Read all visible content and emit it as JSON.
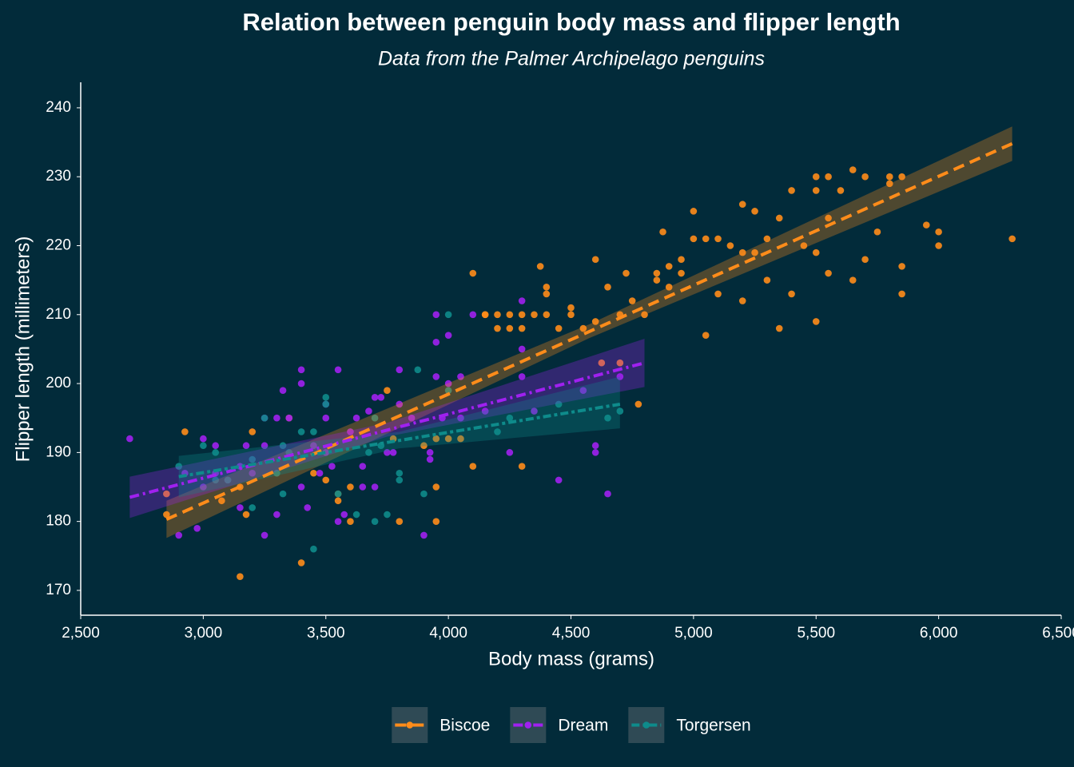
{
  "chart_data": {
    "type": "scatter",
    "title": "Relation between penguin body mass and flipper length",
    "subtitle": "Data from the Palmer Archipelago penguins",
    "x_label": "Body mass (grams)",
    "y_label": "Flipper length (millimeters)",
    "xlim": [
      2500,
      6500
    ],
    "ylim": [
      166.4,
      243.7
    ],
    "xticks": [
      {
        "value": 2500,
        "label": "2,500"
      },
      {
        "value": 3000,
        "label": "3,000"
      },
      {
        "value": 3500,
        "label": "3,500"
      },
      {
        "value": 4000,
        "label": "4,000"
      },
      {
        "value": 4500,
        "label": "4,500"
      },
      {
        "value": 5000,
        "label": "5,000"
      },
      {
        "value": 5500,
        "label": "5,500"
      },
      {
        "value": 6000,
        "label": "6,000"
      },
      {
        "value": 6500,
        "label": "6,500"
      }
    ],
    "yticks": [
      170,
      180,
      190,
      200,
      210,
      220,
      230,
      240
    ],
    "grid": false,
    "legend": "bottom",
    "series": [
      {
        "name": "Biscoe",
        "color": "#ff8c1a",
        "dash": "14 8",
        "x": [
          2850,
          2850,
          2925,
          3075,
          3150,
          3150,
          3175,
          3200,
          3350,
          3400,
          3450,
          3500,
          3550,
          3550,
          3600,
          3600,
          3750,
          3775,
          3800,
          3900,
          3950,
          3950,
          3950,
          4000,
          4050,
          4100,
          4100,
          4150,
          4200,
          4200,
          4250,
          4300,
          4300,
          4375,
          4400,
          4400,
          4450,
          4500,
          4550,
          4600,
          4625,
          4650,
          4700,
          4725,
          4750,
          4775,
          4800,
          4850,
          4875,
          4900,
          4950,
          5000,
          5000,
          5050,
          5100,
          5100,
          5200,
          5200,
          5200,
          5250,
          5300,
          5300,
          5350,
          5350,
          5400,
          5400,
          5450,
          5500,
          5500,
          5500,
          5500,
          5550,
          5550,
          5550,
          5600,
          5650,
          5650,
          5700,
          5700,
          5750,
          5800,
          5800,
          5850,
          5850,
          5850,
          5950,
          6000,
          6000,
          6300,
          4700,
          4600,
          4500,
          4400,
          4350,
          4300,
          4250,
          4150,
          5250,
          5150,
          5050,
          4950,
          4900,
          4850
        ],
        "values": [
          184,
          181,
          193,
          183,
          172,
          185,
          181,
          193,
          195,
          174,
          187,
          186,
          183,
          184,
          185,
          180,
          199,
          192,
          180,
          191,
          185,
          180,
          192,
          192,
          192,
          216,
          188,
          210,
          210,
          208,
          208,
          188,
          208,
          217,
          214,
          213,
          208,
          211,
          208,
          218,
          203,
          214,
          210,
          216,
          212,
          197,
          210,
          215,
          222,
          217,
          218,
          225,
          221,
          207,
          213,
          221,
          226,
          219,
          212,
          225,
          221,
          215,
          224,
          208,
          228,
          213,
          220,
          230,
          228,
          219,
          209,
          230,
          224,
          216,
          228,
          231,
          215,
          230,
          218,
          222,
          230,
          229,
          230,
          217,
          213,
          223,
          222,
          220,
          221,
          203,
          209,
          210,
          210,
          210,
          210,
          210,
          210,
          219,
          220,
          221,
          216,
          214,
          216
        ],
        "fit": {
          "x": [
            2850,
            6300
          ],
          "values": [
            180.3,
            234.8
          ]
        },
        "band": {
          "x": [
            2850,
            4575,
            6300
          ],
          "lower": [
            177.6,
            206.6,
            232.3
          ],
          "upper": [
            183.0,
            208.6,
            237.3
          ]
        }
      },
      {
        "name": "Dream",
        "color": "#a020f0",
        "dash": "12 5 3 5",
        "x": [
          2700,
          2900,
          2925,
          2975,
          3000,
          3000,
          3050,
          3050,
          3100,
          3150,
          3175,
          3200,
          3250,
          3250,
          3300,
          3300,
          3325,
          3350,
          3400,
          3400,
          3400,
          3425,
          3450,
          3475,
          3500,
          3500,
          3525,
          3550,
          3550,
          3575,
          3600,
          3625,
          3650,
          3650,
          3675,
          3700,
          3700,
          3725,
          3750,
          3775,
          3800,
          3800,
          3850,
          3900,
          3925,
          3925,
          3950,
          3950,
          3950,
          3975,
          4000,
          4050,
          4050,
          4100,
          4150,
          4250,
          4300,
          4300,
          4300,
          4350,
          4450,
          4550,
          4600,
          4600,
          4650,
          4700,
          4000,
          3500,
          3250,
          3150
        ],
        "values": [
          192,
          178,
          187,
          179,
          192,
          185,
          187,
          191,
          186,
          182,
          191,
          187,
          178,
          191,
          195,
          181,
          199,
          195,
          202,
          200,
          185,
          182,
          191,
          187,
          195,
          190,
          188,
          180,
          202,
          181,
          193,
          195,
          185,
          188,
          196,
          198,
          185,
          198,
          190,
          190,
          197,
          202,
          195,
          178,
          190,
          189,
          201,
          210,
          206,
          195,
          200,
          201,
          195,
          210,
          196,
          190,
          212,
          205,
          201,
          196,
          186,
          199,
          191,
          190,
          184,
          201,
          207,
          197,
          195,
          188
        ],
        "fit": {
          "x": [
            2700,
            4800
          ],
          "values": [
            183.5,
            203.0
          ]
        },
        "band": {
          "x": [
            2700,
            3750,
            4800
          ],
          "lower": [
            180.5,
            192.3,
            199.5
          ],
          "upper": [
            186.5,
            194.3,
            206.5
          ]
        }
      },
      {
        "name": "Torgersen",
        "color": "#0e8b8b",
        "dash": "10 4 4 4",
        "x": [
          2900,
          3000,
          3050,
          3100,
          3200,
          3200,
          3250,
          3300,
          3325,
          3350,
          3400,
          3450,
          3450,
          3500,
          3500,
          3550,
          3625,
          3700,
          3700,
          3750,
          3800,
          3800,
          3875,
          3900,
          4000,
          4000,
          4200,
          4250,
          4450,
          4650,
          4700,
          3675,
          3725,
          3325,
          3050
        ],
        "values": [
          188,
          191,
          190,
          186,
          189,
          182,
          195,
          187,
          184,
          190,
          193,
          176,
          193,
          198,
          197,
          184,
          181,
          180,
          195,
          181,
          187,
          186,
          202,
          184,
          210,
          199,
          193,
          195,
          197,
          195,
          196,
          190,
          191,
          191,
          186
        ],
        "fit": {
          "x": [
            2900,
            4700
          ],
          "values": [
            186.5,
            197.0
          ]
        },
        "band": {
          "x": [
            2900,
            3800,
            4700
          ],
          "lower": [
            183.5,
            190.6,
            193.5
          ],
          "upper": [
            189.5,
            193.0,
            201.0
          ]
        }
      }
    ]
  }
}
